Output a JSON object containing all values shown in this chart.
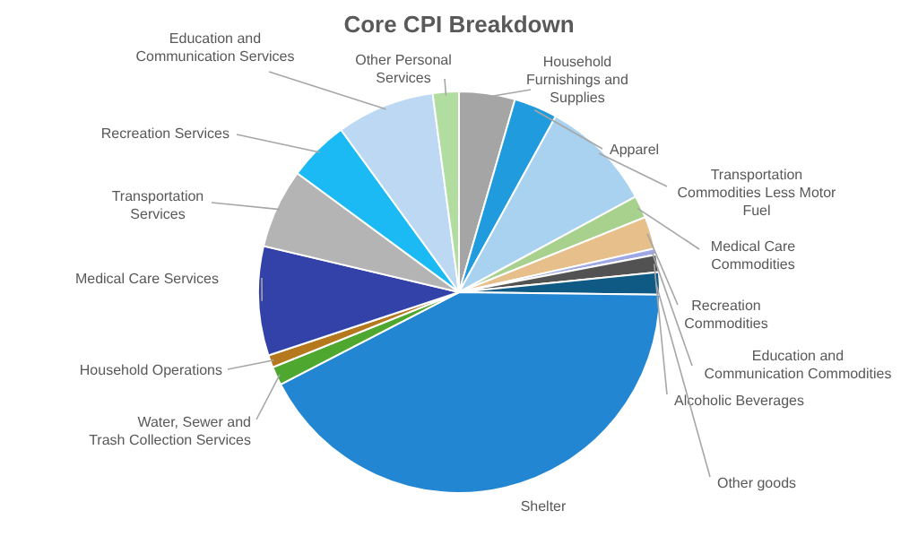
{
  "chart_data": {
    "type": "pie",
    "title": "Core CPI Breakdown",
    "categories": [
      "Household Furnishings and Supplies",
      "Apparel",
      "Transportation Commodities Less Motor Fuel",
      "Medical Care Commodities",
      "Recreation Commodities",
      "Education and Communication Commodities",
      "Alcoholic Beverages",
      "Other goods",
      "Shelter",
      "Water, Sewer and Trash Collection Services",
      "Household Operations",
      "Medical Care Services",
      "Transportation Services",
      "Recreation Services",
      "Education and Communication Services",
      "Other Personal Services"
    ],
    "values": [
      4.5,
      3.5,
      9.1,
      1.8,
      2.6,
      0.5,
      1.4,
      1.8,
      42.2,
      1.5,
      1.0,
      8.8,
      6.4,
      4.9,
      7.9,
      2.1
    ],
    "colors": [
      "#a5a5a5",
      "#1f9bde",
      "#a9d1f0",
      "#a9d18e",
      "#e6bf8a",
      "#9fa8e6",
      "#525252",
      "#0e5a85",
      "#2386d3",
      "#4ea72e",
      "#b5781d",
      "#3342a8",
      "#b4b4b4",
      "#1bbaf5",
      "#bcd8f2",
      "#b1dea0"
    ]
  }
}
